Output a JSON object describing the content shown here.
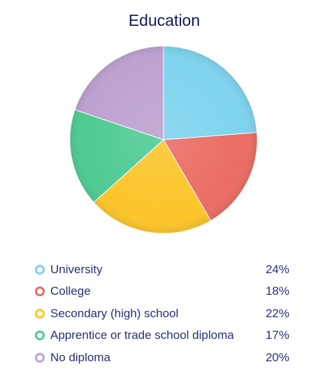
{
  "chart_data": {
    "type": "pie",
    "title": "Education",
    "slices": [
      {
        "label": "University",
        "value": 24,
        "display": "24%",
        "color": "#7fd3ee"
      },
      {
        "label": "College",
        "value": 18,
        "display": "18%",
        "color": "#eb6d64"
      },
      {
        "label": "Secondary (high) school",
        "value": 22,
        "display": "22%",
        "color": "#fcc52a"
      },
      {
        "label": "Apprentice or trade school diploma",
        "value": 17,
        "display": "17%",
        "color": "#4fcb95"
      },
      {
        "label": "No diploma",
        "value": 20,
        "display": "20%",
        "color": "#bfa1d0"
      }
    ],
    "legend_position": "bottom"
  }
}
